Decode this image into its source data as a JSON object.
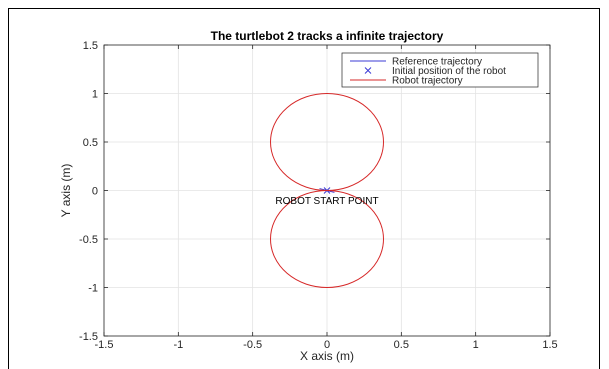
{
  "chart_data": {
    "type": "line",
    "title": "The turtlebot 2 tracks a infinite trajectory",
    "xlabel": "X axis (m)",
    "ylabel": "Y axis (m)",
    "xlim": [
      -1.5,
      1.5
    ],
    "ylim": [
      -1.5,
      1.5
    ],
    "xticks": [
      -1.5,
      -1,
      -0.5,
      0,
      0.5,
      1,
      1.5
    ],
    "yticks": [
      -1.5,
      -1,
      -0.5,
      0,
      0.5,
      1,
      1.5
    ],
    "xtick_labels": [
      "-1.5",
      "-1",
      "-0.5",
      "0",
      "0.5",
      "1",
      "1.5"
    ],
    "ytick_labels": [
      "-1.5",
      "-1",
      "-0.5",
      "0",
      "0.5",
      "1",
      "1.5"
    ],
    "grid": true,
    "legend_position": "top-right",
    "series": [
      {
        "name": "Reference trajectory",
        "kind": "line",
        "color": "#3b3bd6",
        "x": [
          0,
          -0.05,
          0.05,
          0
        ],
        "y": [
          0,
          0.02,
          -0.02,
          0
        ]
      },
      {
        "name": "Initial position of the robot",
        "kind": "marker",
        "marker": "x",
        "color": "#3b3bd6",
        "x": [
          0
        ],
        "y": [
          0
        ]
      },
      {
        "name": "Robot trajectory",
        "kind": "curve",
        "color": "#d62828",
        "shape": "figure-eight",
        "lobes": [
          {
            "center_x": 0,
            "center_y": 0.5,
            "radius_x": 0.38,
            "radius_y": 0.5
          },
          {
            "center_x": 0,
            "center_y": -0.5,
            "radius_x": 0.38,
            "radius_y": 0.5
          }
        ]
      }
    ],
    "annotations": [
      {
        "text": "ROBOT START POINT",
        "x": 0,
        "y": -0.1
      }
    ]
  }
}
